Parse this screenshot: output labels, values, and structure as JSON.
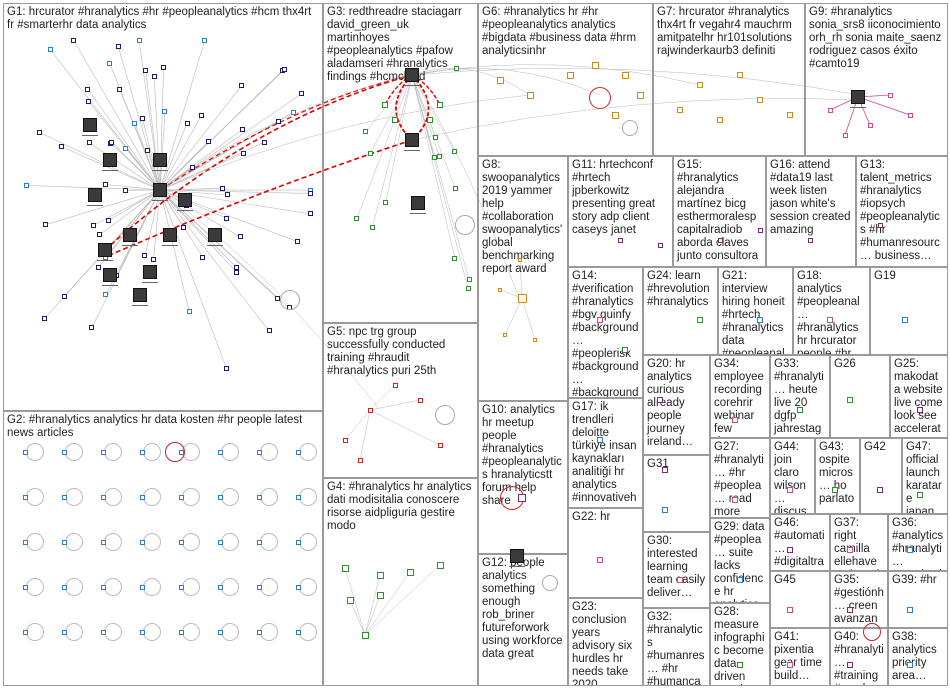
{
  "colors": {
    "border": "#9a9a9a",
    "edge": "#b9b9b9",
    "highlight_edge": "#e00000",
    "node_navy": "#1a1a6e",
    "node_blue": "#2a7fd4",
    "node_green": "#2f8f2f",
    "node_red": "#cc2222",
    "node_purple": "#7a2a7a",
    "node_orange": "#d08a10",
    "node_pink": "#d04a8a"
  },
  "groups": [
    {
      "id": "G1",
      "label": "G1: hrcurator #hranalytics #hr #peopleanalytics #hcm thx4rt fr #smarterhr data analytics"
    },
    {
      "id": "G2",
      "label": "G2: #hranalytics analytics hr data kosten #hr people latest news articles"
    },
    {
      "id": "G3",
      "label": "G3: redthreadre staciagarr david_green_uk martinhoyes #peopleanalytics #pafow aladamseri #hranalytics findings #hcmcloud"
    },
    {
      "id": "G4",
      "label": "G4: #hranalytics hr analytics dati modisitalia conoscere risorse aidpliguria gestire modo"
    },
    {
      "id": "G5",
      "label": "G5: npc trg group successfully conducted training #hraudit #hranalytics puri 25th"
    },
    {
      "id": "G6",
      "label": "G6: #hranalytics hr #hr #peopleanalytics analytics #bigdata #business data #hrm analyticsinhr"
    },
    {
      "id": "G7",
      "label": "G7: hrcurator #hranalytics thx4rt fr vegahr4 mauchrm amitpatelhr hr101solutions rajwinderkaurb3 definiti"
    },
    {
      "id": "G8",
      "label": "G8: swoopanalytics 2019 yammer help #collaboration swoopanalytics' global benchmarking report award"
    },
    {
      "id": "G9",
      "label": "G9: #hranalytics sonia_srs8 iiconocimiento orh_rh sonia maite_saenz rodriguez casos éxito #camto19"
    },
    {
      "id": "G10",
      "label": "G10: analytics hr meetup people #hranalytics #peopleanalytics hranalyticstt forum help share"
    },
    {
      "id": "G11",
      "label": "G11: hrtechconf #hrtech jpberkowitz presenting great story adp client caseys janet"
    },
    {
      "id": "G12",
      "label": "G12: people analytics something enough rob_briner futureforwork using workforce data great"
    },
    {
      "id": "G13",
      "label": "G13: talent_metrics #hranalytics #iopsych #peopleanalytics #hr #humanresourc… business…"
    },
    {
      "id": "G14",
      "label": "G14: #verification #hranalytics #bgv quinfy #background… #peoplerisk #background… #background… #employeee…"
    },
    {
      "id": "G15",
      "label": "G15: #hranalytics alejandra martínez bicg esthermoralesp capitalradiob aborda claves junto consultora"
    },
    {
      "id": "G16",
      "label": "G16: attend #data19 last week listen jason white's session created amazing"
    },
    {
      "id": "G17",
      "label": "G17: ik trendleri deloitte türkiye insan kaynakları analitiği hr analytics #innovativeh…"
    },
    {
      "id": "G18",
      "label": "G18: analytics #peopleanal… #hranalytics hr hrcurator people #hr businesses…"
    },
    {
      "id": "G19",
      "label": "G19"
    },
    {
      "id": "G20",
      "label": "G20: hr analytics curious already people journey ireland…"
    },
    {
      "id": "G21",
      "label": "G21: interview hiring honeit #hrtech #hranalytics data #peopleanal…"
    },
    {
      "id": "G22",
      "label": "G22: hr"
    },
    {
      "id": "G23",
      "label": "G23: conclusion years advisory six hurdles hr needs take 2020 #hrtech"
    },
    {
      "id": "G24",
      "label": "G24: learn #hrevolution #hranalytics"
    },
    {
      "id": "G25",
      "label": "G25: makodata website live come look see accelerat…"
    },
    {
      "id": "G26",
      "label": "G26"
    },
    {
      "id": "G27",
      "label": "G27: #hranalyti… #hr #peoplea… read more #analytics…"
    },
    {
      "id": "G28",
      "label": "G28: measure infographic become data driven recruiter…"
    },
    {
      "id": "G29",
      "label": "G29: data #peoplea… suite lacks confidence hr analytics #talentma…"
    },
    {
      "id": "G30",
      "label": "G30: interested learning team easily deliver…"
    },
    {
      "id": "G31",
      "label": "G31"
    },
    {
      "id": "G32",
      "label": "G32: #hranalytics #humanres… #hr #humanca…"
    },
    {
      "id": "G33",
      "label": "G33: #hranalyti… heute live 20 dgfp jahrestag… personalc…"
    },
    {
      "id": "G34",
      "label": "G34: employee recording corehrir webinar few days…"
    },
    {
      "id": "G35",
      "label": "G35: #gestiónh… creen avanzan…"
    },
    {
      "id": "G36",
      "label": "G36: #analytics #hranalyti… organizati…"
    },
    {
      "id": "G37",
      "label": "G37: right camilla ellehave rockwool…"
    },
    {
      "id": "G38",
      "label": "G38: analytics priority area…"
    },
    {
      "id": "G39",
      "label": "G39: #hr"
    },
    {
      "id": "G40",
      "label": "G40: #hranalyti… #training #emplaw…"
    },
    {
      "id": "G41",
      "label": "G41: pixentia gear time build…"
    },
    {
      "id": "G42",
      "label": "G42"
    },
    {
      "id": "G43",
      "label": "G43: ospite micros… ho parlato…"
    },
    {
      "id": "G44",
      "label": "G44: join claro wilson… discus…"
    },
    {
      "id": "G45",
      "label": "G45"
    },
    {
      "id": "G46",
      "label": "G46: #automati… #digitaltra… #employe…"
    },
    {
      "id": "G47",
      "label": "G47: official launch karatare japan…"
    }
  ]
}
